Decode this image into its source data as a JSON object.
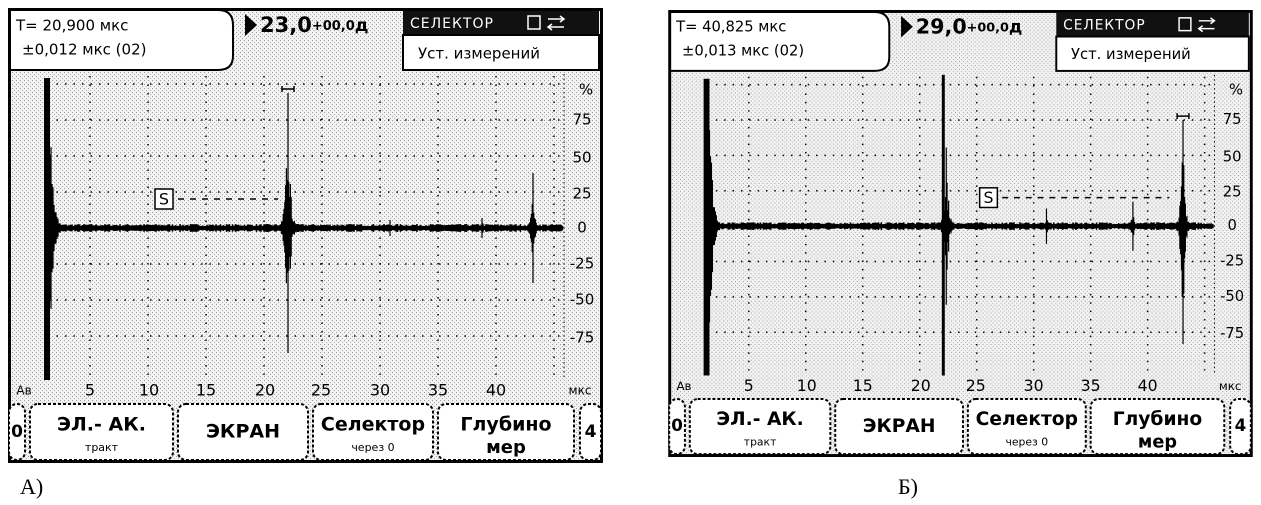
{
  "panels": [
    {
      "caption": "А)",
      "header": {
        "time": "T= 20,900 мкс",
        "error": "±0,012 мкс (02)",
        "gain": "23,0",
        "gain_offset": "+00,0",
        "gain_unit": "д",
        "selector": "СЕЛЕКТОР",
        "menu": "Уст. измерений"
      },
      "y_labels": [
        "%",
        "75",
        "50",
        "25",
        "0",
        "-25",
        "-50",
        "-75"
      ],
      "x_labels": [
        "Ав",
        "5",
        "10",
        "15",
        "20",
        "25",
        "30",
        "35",
        "40",
        "мкс"
      ],
      "gate_label": "S",
      "buttons": [
        {
          "label": "0"
        },
        {
          "label": "ЭЛ.- АК.",
          "sub": "тракт"
        },
        {
          "label": "ЭКРАН"
        },
        {
          "label": "Селектор",
          "sub": "через 0"
        },
        {
          "label": "Глубино",
          "sub": "мер"
        },
        {
          "label": "4"
        }
      ]
    },
    {
      "caption": "Б)",
      "header": {
        "time": "T= 40,825 мкс",
        "error": "±0,013 мкс (02)",
        "gain": "29,0",
        "gain_offset": "+00,0",
        "gain_unit": "д",
        "selector": "СЕЛЕКТОР",
        "menu": "Уст. измерений"
      },
      "y_labels": [
        "%",
        "75",
        "50",
        "25",
        "0",
        "-25",
        "-50",
        "-75"
      ],
      "x_labels": [
        "Ав",
        "5",
        "10",
        "15",
        "20",
        "25",
        "30",
        "35",
        "40",
        "мкс"
      ],
      "gate_label": "S",
      "buttons": [
        {
          "label": "0"
        },
        {
          "label": "ЭЛ.- АК.",
          "sub": "тракт"
        },
        {
          "label": "ЭКРАН"
        },
        {
          "label": "Селектор",
          "sub": "через 0"
        },
        {
          "label": "Глубино",
          "sub": "мер"
        },
        {
          "label": "4"
        }
      ]
    }
  ]
}
